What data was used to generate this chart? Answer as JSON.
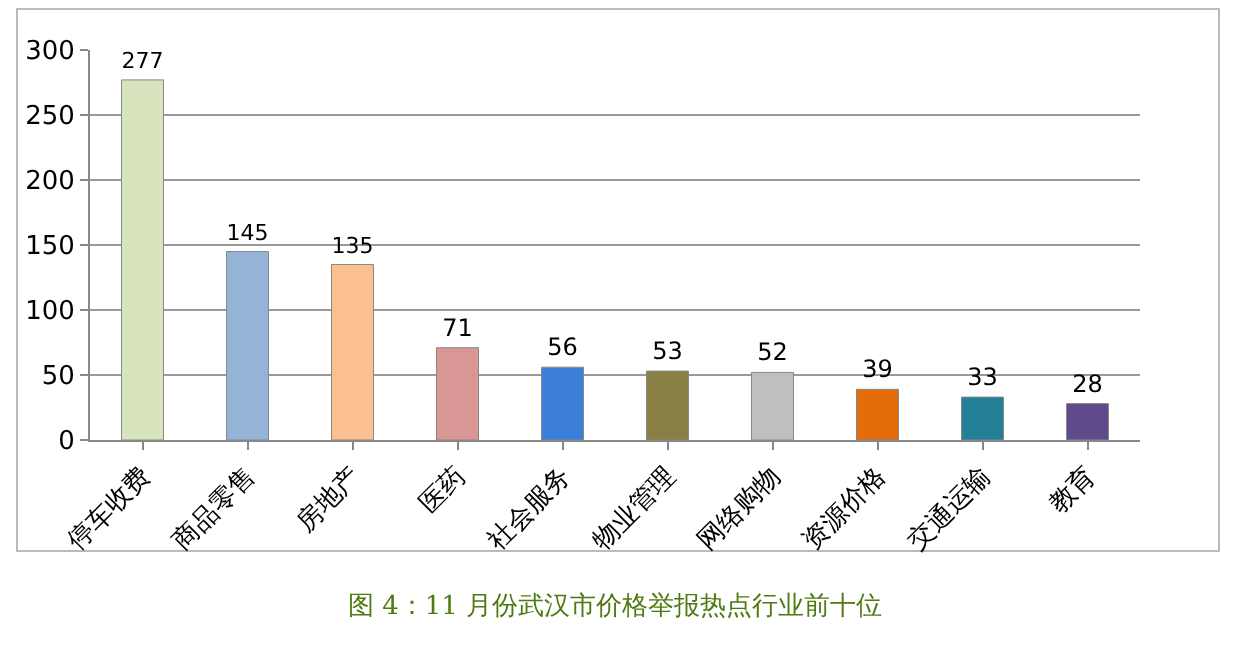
{
  "chart_data": {
    "type": "bar",
    "categories": [
      "停车收费",
      "商品零售",
      "房地产",
      "医药",
      "社会服务",
      "物业管理",
      "网络购物",
      "资源价格",
      "交通运输",
      "教育"
    ],
    "values": [
      277,
      145,
      135,
      71,
      56,
      53,
      52,
      39,
      33,
      28
    ],
    "colors": [
      "#d7e4bd",
      "#95b3d7",
      "#fac090",
      "#d99694",
      "#3c7fd8",
      "#8a7f45",
      "#bfbfbf",
      "#e46c0a",
      "#237f96",
      "#5f4a8b"
    ],
    "ylim": [
      0,
      300
    ],
    "yticks": [
      0,
      50,
      100,
      150,
      200,
      250,
      300
    ],
    "grid": "y",
    "data_labels": true,
    "annotations": [
      "图 4：11 月份武汉市价格举报热点行业前十位"
    ]
  }
}
